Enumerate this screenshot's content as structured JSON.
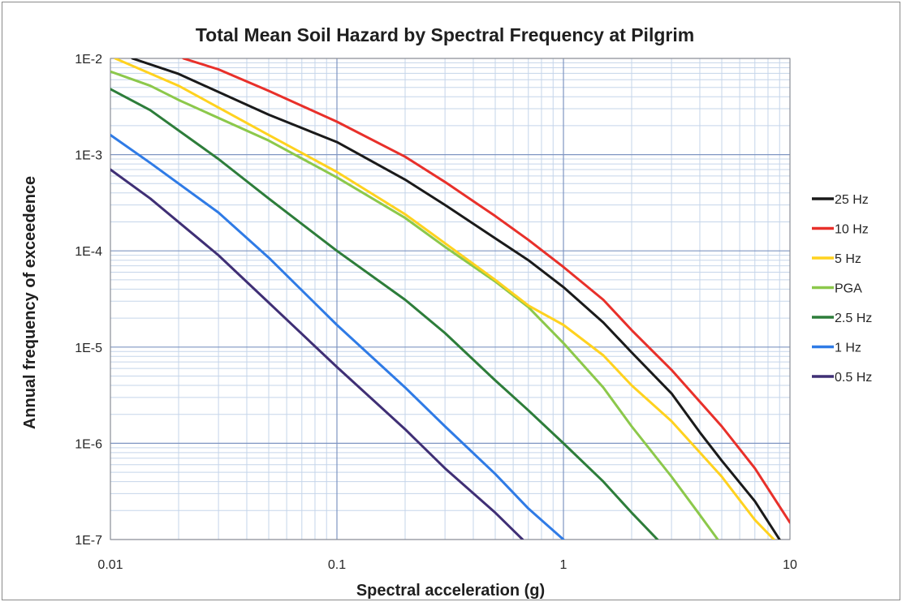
{
  "chart_data": {
    "type": "line",
    "title": "Total Mean Soil Hazard by Spectral Frequency at Pilgrim",
    "xlabel": "Spectral acceleration (g)",
    "ylabel": "Annual frequency of exceedence",
    "x_scale": "log",
    "y_scale": "log",
    "xlim": [
      0.01,
      10
    ],
    "ylim": [
      1e-07,
      0.01
    ],
    "x_ticks": [
      0.01,
      0.1,
      1,
      10
    ],
    "x_tick_labels": [
      "0.01",
      "0.1",
      "1",
      "10"
    ],
    "y_ticks": [
      0.01,
      0.001,
      0.0001,
      1e-05,
      1e-06,
      1e-07
    ],
    "y_tick_labels": [
      "1E-2",
      "1E-3",
      "1E-4",
      "1E-5",
      "1E-6",
      "1E-7"
    ],
    "grid": true,
    "legend_position": "right",
    "series": [
      {
        "name": "25 Hz",
        "color": "#1a1a1a",
        "points": [
          [
            0.0125,
            0.01
          ],
          [
            0.02,
            0.0069
          ],
          [
            0.05,
            0.0026
          ],
          [
            0.1,
            0.00135
          ],
          [
            0.2,
            0.00055
          ],
          [
            0.3,
            0.0003
          ],
          [
            0.5,
            0.000135
          ],
          [
            0.7,
            8e-05
          ],
          [
            1.0,
            4.2e-05
          ],
          [
            1.5,
            1.8e-05
          ],
          [
            2.0,
            8.8e-06
          ],
          [
            3.0,
            3.3e-06
          ],
          [
            4.0,
            1.3e-06
          ],
          [
            5.0,
            6.6e-07
          ],
          [
            7.0,
            2.5e-07
          ],
          [
            9.0,
            1e-07
          ]
        ]
      },
      {
        "name": "10 Hz",
        "color": "#e8302a",
        "points": [
          [
            0.021,
            0.01
          ],
          [
            0.03,
            0.0077
          ],
          [
            0.05,
            0.0046
          ],
          [
            0.1,
            0.0022
          ],
          [
            0.2,
            0.00095
          ],
          [
            0.3,
            0.00052
          ],
          [
            0.5,
            0.00023
          ],
          [
            0.7,
            0.00013
          ],
          [
            1.0,
            6.8e-05
          ],
          [
            1.5,
            3.1e-05
          ],
          [
            2.0,
            1.5e-05
          ],
          [
            3.0,
            5.8e-06
          ],
          [
            5.0,
            1.5e-06
          ],
          [
            7.0,
            5.5e-07
          ],
          [
            10.0,
            1.5e-07
          ]
        ]
      },
      {
        "name": "5 Hz",
        "color": "#ffd21f",
        "points": [
          [
            0.0105,
            0.01
          ],
          [
            0.02,
            0.0052
          ],
          [
            0.05,
            0.0016
          ],
          [
            0.1,
            0.00066
          ],
          [
            0.2,
            0.00024
          ],
          [
            0.3,
            0.00012
          ],
          [
            0.5,
            5e-05
          ],
          [
            0.7,
            2.7e-05
          ],
          [
            1.0,
            1.7e-05
          ],
          [
            1.5,
            8.2e-06
          ],
          [
            2.0,
            4e-06
          ],
          [
            3.0,
            1.7e-06
          ],
          [
            5.0,
            4.5e-07
          ],
          [
            7.0,
            1.6e-07
          ],
          [
            8.5,
            1e-07
          ]
        ]
      },
      {
        "name": "PGA",
        "color": "#8cc84b",
        "points": [
          [
            0.01,
            0.0073
          ],
          [
            0.015,
            0.0052
          ],
          [
            0.02,
            0.0037
          ],
          [
            0.05,
            0.0014
          ],
          [
            0.1,
            0.00058
          ],
          [
            0.2,
            0.00022
          ],
          [
            0.3,
            0.00011
          ],
          [
            0.5,
            4.8e-05
          ],
          [
            0.7,
            2.6e-05
          ],
          [
            1.0,
            1.1e-05
          ],
          [
            1.5,
            3.8e-06
          ],
          [
            2.0,
            1.5e-06
          ],
          [
            3.0,
            4.5e-07
          ],
          [
            4.0,
            1.8e-07
          ],
          [
            4.8,
            1e-07
          ]
        ]
      },
      {
        "name": "2.5 Hz",
        "color": "#2d7d3a",
        "points": [
          [
            0.01,
            0.0048
          ],
          [
            0.015,
            0.0029
          ],
          [
            0.03,
            0.0009
          ],
          [
            0.05,
            0.00035
          ],
          [
            0.1,
            0.0001
          ],
          [
            0.2,
            3.1e-05
          ],
          [
            0.3,
            1.4e-05
          ],
          [
            0.5,
            4.5e-06
          ],
          [
            0.7,
            2.2e-06
          ],
          [
            1.0,
            1e-06
          ],
          [
            1.5,
            4e-07
          ],
          [
            2.0,
            1.9e-07
          ],
          [
            2.6,
            1e-07
          ]
        ]
      },
      {
        "name": "1 Hz",
        "color": "#2f7be6",
        "points": [
          [
            0.01,
            0.0016
          ],
          [
            0.015,
            0.00082
          ],
          [
            0.03,
            0.00025
          ],
          [
            0.05,
            8.5e-05
          ],
          [
            0.1,
            1.7e-05
          ],
          [
            0.2,
            3.8e-06
          ],
          [
            0.3,
            1.5e-06
          ],
          [
            0.5,
            4.8e-07
          ],
          [
            0.7,
            2.1e-07
          ],
          [
            1.0,
            1e-07
          ]
        ]
      },
      {
        "name": "0.5 Hz",
        "color": "#3f2f75",
        "points": [
          [
            0.01,
            0.0007
          ],
          [
            0.015,
            0.00035
          ],
          [
            0.03,
            9e-05
          ],
          [
            0.05,
            2.9e-05
          ],
          [
            0.1,
            6.2e-06
          ],
          [
            0.2,
            1.4e-06
          ],
          [
            0.3,
            5.5e-07
          ],
          [
            0.5,
            1.9e-07
          ],
          [
            0.66,
            1e-07
          ]
        ]
      }
    ]
  }
}
